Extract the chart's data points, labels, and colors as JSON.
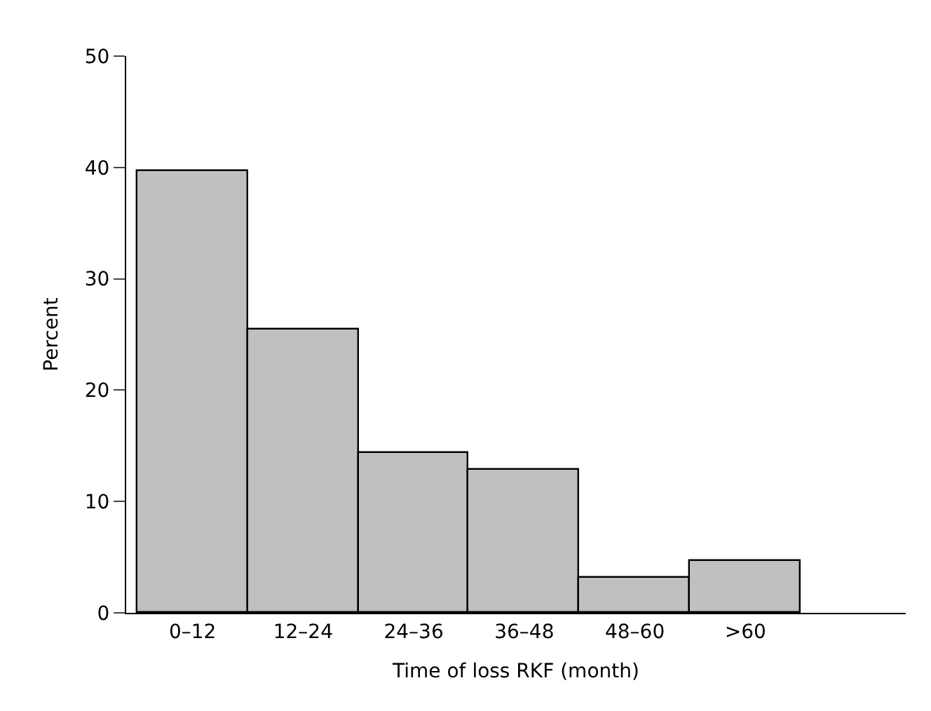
{
  "chart_data": {
    "type": "bar",
    "xlabel": "Time of loss RKF (month)",
    "ylabel": "Percent",
    "categories": [
      "0–12",
      "12–24",
      "24–36",
      "36–48",
      "48–60",
      ">60"
    ],
    "values": [
      39.7,
      25.4,
      14.3,
      12.8,
      3.1,
      4.7
    ],
    "color": "#c0c0c0",
    "ylim": [
      0,
      50
    ],
    "yticks": [
      0,
      10,
      20,
      30,
      40,
      50
    ]
  }
}
